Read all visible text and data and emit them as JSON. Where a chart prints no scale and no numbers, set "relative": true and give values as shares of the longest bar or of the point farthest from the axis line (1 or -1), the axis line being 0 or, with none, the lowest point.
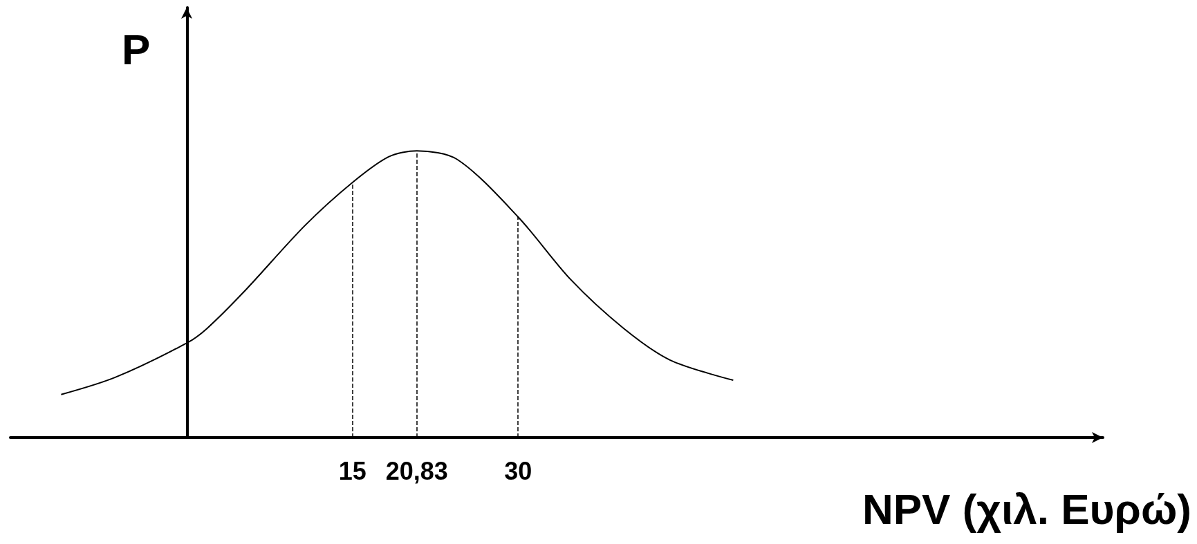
{
  "chart_data": {
    "type": "line",
    "relative": true,
    "xlabel": "NPV (χιλ. Ευρώ)",
    "ylabel": "P",
    "xlim": [
      -16,
      83
    ],
    "xticks": [
      15,
      {
        "value": 20.83,
        "label": "20,83"
      },
      30
    ],
    "series": [
      {
        "color": "#000000",
        "x": [
          -11.4,
          -6.5,
          0,
          1.8,
          5.2,
          10.7,
          15,
          18.3,
          20.83,
          24.5,
          30,
          34.8,
          39.6,
          43.8,
          49.5
        ],
        "values": [
          0.15,
          0.21,
          0.33,
          0.38,
          0.51,
          0.74,
          0.89,
          0.98,
          1,
          0.97,
          0.77,
          0.55,
          0.38,
          0.27,
          0.2
        ]
      }
    ],
    "ref_lines": [
      {
        "axis": "x",
        "value": 15,
        "line_style": "dashed"
      },
      {
        "axis": "x",
        "value": 20.83,
        "line_style": "dashed"
      },
      {
        "axis": "x",
        "value": 30,
        "line_style": "dashed"
      }
    ],
    "grid": false,
    "marker": "none",
    "line_style": "solid"
  }
}
